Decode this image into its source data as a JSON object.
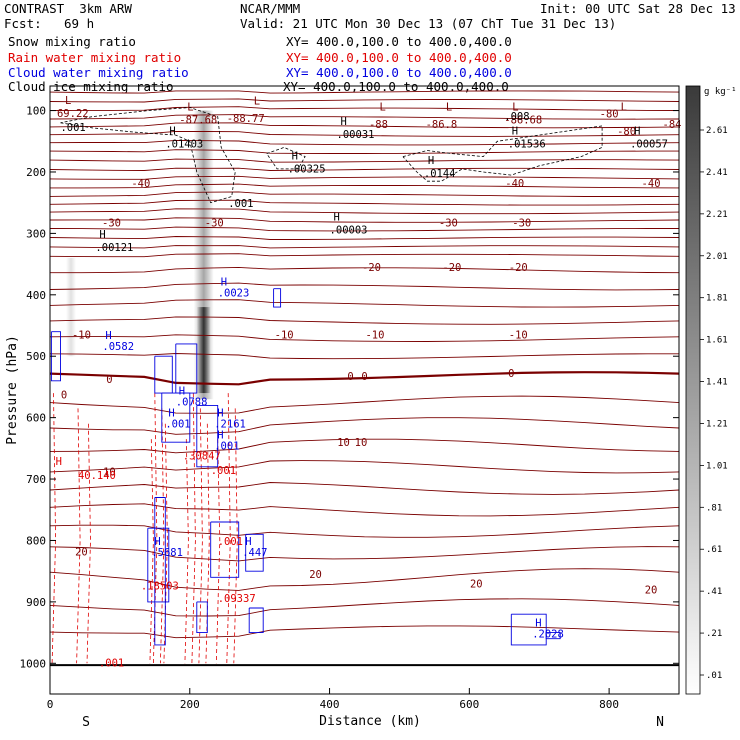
{
  "header": {
    "model": "CONTRAST  3km ARW",
    "org": "NCAR/MMM",
    "init": "Init: 00 UTC Sat 28 Dec 13",
    "fcst_label": "Fcst:",
    "fcst_value": "69 h",
    "valid": "Valid: 21 UTC Mon 30 Dec 13 (07 ChT Tue 31 Dec 13)"
  },
  "fields": [
    {
      "label": "Snow mixing ratio",
      "xy": "XY= 400.0,100.0 to 400.0,400.0",
      "color": "#000000"
    },
    {
      "label": "Rain water mixing ratio",
      "xy": "XY= 400.0,100.0 to 400.0,400.0",
      "color": "#e00000"
    },
    {
      "label": "Cloud water mixing ratio",
      "xy": "XY= 400.0,100.0 to 400.0,400.0",
      "color": "#0000e0"
    },
    {
      "label": "Cloud ice mixing ratio",
      "xy": "XY= 400.0,100.0 to 400.0,400.0",
      "color": "#000000"
    }
  ],
  "colorbar": {
    "unit": "g kg⁻¹",
    "ticks": [
      "2.61",
      "2.41",
      "2.21",
      "2.01",
      "1.81",
      "1.61",
      "1.41",
      "1.21",
      "1.01",
      ".81",
      ".61",
      ".41",
      ".21",
      ".01"
    ]
  },
  "chart_data": {
    "type": "cross-section",
    "xlabel": "Distance (km)",
    "ylabel": "Pressure (hPa)",
    "xlim": [
      0,
      900
    ],
    "ylim": [
      1050,
      60
    ],
    "x_ticks": [
      0,
      200,
      400,
      600,
      800
    ],
    "y_ticks": [
      100,
      200,
      300,
      400,
      500,
      600,
      700,
      800,
      900,
      1000
    ],
    "x_end_labels": {
      "left": "S",
      "right": "N"
    },
    "temperature_contours": {
      "levels_celsius": [
        -88,
        -84,
        -80,
        -40,
        -30,
        -20,
        -10,
        0,
        10,
        20
      ],
      "labels": [
        {
          "text": "-88.77",
          "x": 280,
          "p": 112
        },
        {
          "text": "-88",
          "x": 470,
          "p": 122
        },
        {
          "text": "-86.8",
          "x": 560,
          "p": 122
        },
        {
          "text": "-80",
          "x": 800,
          "p": 105
        },
        {
          "text": "-80",
          "x": 825,
          "p": 133
        },
        {
          "text": "-84",
          "x": 890,
          "p": 122
        },
        {
          "text": "-40",
          "x": 130,
          "p": 218
        },
        {
          "text": "-40",
          "x": 665,
          "p": 218
        },
        {
          "text": "-40",
          "x": 860,
          "p": 218
        },
        {
          "text": "-30",
          "x": 88,
          "p": 282
        },
        {
          "text": "-30",
          "x": 235,
          "p": 282
        },
        {
          "text": "-30",
          "x": 570,
          "p": 282
        },
        {
          "text": "-30",
          "x": 675,
          "p": 282
        },
        {
          "text": "-20",
          "x": 460,
          "p": 355
        },
        {
          "text": "-20",
          "x": 575,
          "p": 355
        },
        {
          "text": "-20",
          "x": 670,
          "p": 355
        },
        {
          "text": "-10",
          "x": 45,
          "p": 465
        },
        {
          "text": "-10",
          "x": 335,
          "p": 465
        },
        {
          "text": "-10",
          "x": 465,
          "p": 465
        },
        {
          "text": "-10",
          "x": 670,
          "p": 465
        },
        {
          "text": "0",
          "x": 85,
          "p": 537
        },
        {
          "text": "0",
          "x": 430,
          "p": 532
        },
        {
          "text": "0",
          "x": 450,
          "p": 532
        },
        {
          "text": "0",
          "x": 660,
          "p": 527
        },
        {
          "text": "0",
          "x": 20,
          "p": 562
        },
        {
          "text": "10",
          "x": 420,
          "p": 640
        },
        {
          "text": "10",
          "x": 445,
          "p": 640
        },
        {
          "text": "10",
          "x": 85,
          "p": 688
        },
        {
          "text": "20",
          "x": 45,
          "p": 818
        },
        {
          "text": "20",
          "x": 380,
          "p": 855
        },
        {
          "text": "20",
          "x": 610,
          "p": 870
        },
        {
          "text": "20",
          "x": 860,
          "p": 880
        }
      ],
      "highs_lows": [
        {
          "type": "L",
          "value": "69.22",
          "x": 10,
          "p": 89
        },
        {
          "type": "L",
          "value": "-87.68",
          "x": 185,
          "p": 100
        },
        {
          "type": "L",
          "value": "",
          "x": 280,
          "p": 90
        },
        {
          "type": "L",
          "value": "",
          "x": 460,
          "p": 100
        },
        {
          "type": "L",
          "value": "",
          "x": 555,
          "p": 100
        },
        {
          "type": "L",
          "value": "-86.68",
          "x": 650,
          "p": 100
        },
        {
          "type": "L",
          "value": "",
          "x": 805,
          "p": 100
        }
      ]
    },
    "snow_contours": {
      "level": ".001",
      "maxima": [
        {
          "value": ".01403",
          "x": 165,
          "p": 142
        },
        {
          "value": ".00031",
          "x": 410,
          "p": 127
        },
        {
          "value": ".00325",
          "x": 340,
          "p": 183
        },
        {
          "value": ".0144",
          "x": 535,
          "p": 190
        },
        {
          "value": ".01536",
          "x": 655,
          "p": 142
        },
        {
          "value": ".00057",
          "x": 830,
          "p": 142
        },
        {
          "value": ".00003",
          "x": 400,
          "p": 282
        },
        {
          "value": ".00121",
          "x": 65,
          "p": 311
        }
      ],
      "labels": [
        {
          "text": ".001",
          "x": 15,
          "p": 133
        },
        {
          "text": ".001",
          "x": 255,
          "p": 257
        },
        {
          "text": ".008",
          "x": 650,
          "p": 115
        }
      ]
    },
    "rain_contours": {
      "maxima": [
        {
          "value": "H",
          "x": 8,
          "p": 677
        },
        {
          "value": "40.140",
          "x": 40,
          "p": 700
        },
        {
          "value": ".30847",
          "x": 190,
          "p": 668
        },
        {
          "value": ".18503",
          "x": 130,
          "p": 880
        },
        {
          "value": ".09337",
          "x": 240,
          "p": 900
        }
      ],
      "labels": [
        {
          "text": ".001",
          "x": 240,
          "p": 807
        },
        {
          "text": ".001",
          "x": 230,
          "p": 692
        },
        {
          "text": ".001",
          "x": 70,
          "p": 1005
        }
      ]
    },
    "cloud_water_contours": {
      "maxima": [
        {
          "value": ".0023",
          "x": 240,
          "p": 403
        },
        {
          "value": ".0582",
          "x": 75,
          "p": 490
        },
        {
          "value": ".0788",
          "x": 180,
          "p": 580
        },
        {
          "value": ".001",
          "x": 165,
          "p": 616
        },
        {
          "value": ".2161",
          "x": 235,
          "p": 616
        },
        {
          "value": ".001",
          "x": 235,
          "p": 652
        },
        {
          "value": ".5681",
          "x": 145,
          "p": 825
        },
        {
          "value": ".447",
          "x": 275,
          "p": 825
        },
        {
          "value": ".2028",
          "x": 690,
          "p": 958
        }
      ]
    },
    "cloud_ice": {
      "max_g_per_kg": 2.6,
      "core_x": 220,
      "core_p": [
        100,
        570
      ]
    },
    "surface_pressure_hpa": 1003
  }
}
